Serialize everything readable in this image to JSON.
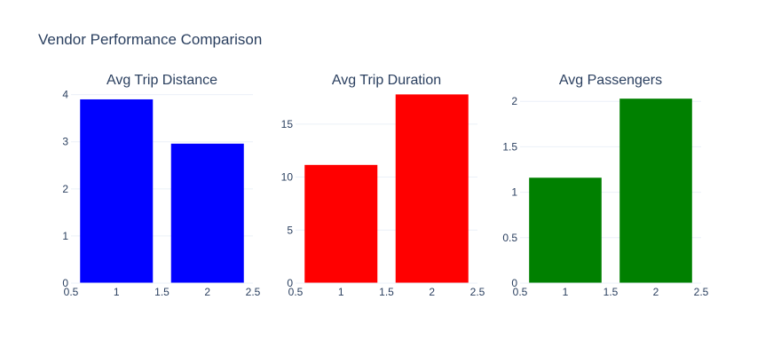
{
  "title": "Vendor Performance Comparison",
  "chart_data": [
    {
      "type": "bar",
      "title": "Avg Trip Distance",
      "x": [
        1,
        2
      ],
      "values": [
        3.9,
        2.96
      ],
      "color": "#0000ff",
      "xlim": [
        0.5,
        2.5
      ],
      "ylim": [
        0,
        4.05
      ],
      "xticks": [
        0.5,
        1,
        1.5,
        2,
        2.5
      ],
      "yticks": [
        0,
        1,
        2,
        3,
        4
      ],
      "grid": true
    },
    {
      "type": "bar",
      "title": "Avg Trip Duration",
      "x": [
        1,
        2
      ],
      "values": [
        11.15,
        17.8
      ],
      "color": "#ff0000",
      "xlim": [
        0.5,
        2.5
      ],
      "ylim": [
        0,
        18.0
      ],
      "xticks": [
        0.5,
        1,
        1.5,
        2,
        2.5
      ],
      "yticks": [
        0,
        5,
        10,
        15
      ],
      "grid": true
    },
    {
      "type": "bar",
      "title": "Avg Passengers",
      "x": [
        1,
        2
      ],
      "values": [
        1.16,
        2.03
      ],
      "color": "#008000",
      "xlim": [
        0.5,
        2.5
      ],
      "ylim": [
        0,
        2.1
      ],
      "xticks": [
        0.5,
        1,
        1.5,
        2,
        2.5
      ],
      "yticks": [
        0,
        0.5,
        1,
        1.5,
        2
      ],
      "grid": true
    }
  ]
}
